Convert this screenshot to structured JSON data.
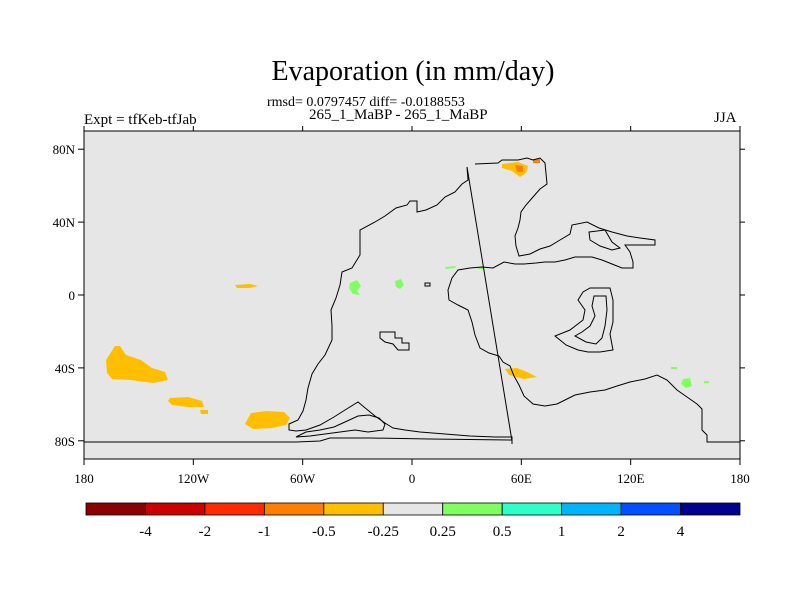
{
  "figure": {
    "title": "Evaporation (in mm/day)",
    "stats": "rmsd= 0.0797457 diff= -0.0188553",
    "subtitle": "265_1_MaBP - 265_1_MaBP",
    "left_label": "Expt = tfKeb-tfJab",
    "right_label": "JJA"
  },
  "map": {
    "lon_range": [
      -180,
      180
    ],
    "lat_range": [
      -90,
      90
    ],
    "background_color": "#e6e6e6",
    "coastline_color": "#000000",
    "lon_ticks": [
      {
        "value": -180,
        "label": "180"
      },
      {
        "value": -120,
        "label": "120W"
      },
      {
        "value": -60,
        "label": "60W"
      },
      {
        "value": 0,
        "label": "0"
      },
      {
        "value": 60,
        "label": "60E"
      },
      {
        "value": 120,
        "label": "120E"
      },
      {
        "value": 180,
        "label": "180"
      }
    ],
    "lat_ticks": [
      {
        "value": 80,
        "label": "80N"
      },
      {
        "value": 40,
        "label": "40N"
      },
      {
        "value": 0,
        "label": "0"
      },
      {
        "value": -40,
        "label": "40S"
      },
      {
        "value": -80,
        "label": "80S"
      }
    ]
  },
  "colorbar": {
    "colors": [
      "#8b0000",
      "#cc0000",
      "#ff2a00",
      "#ff7f00",
      "#ffbf00",
      "#e6e6e6",
      "#80ff60",
      "#2effc8",
      "#00b4ff",
      "#0050ff",
      "#000090"
    ],
    "labels": [
      "-4",
      "-2",
      "-1",
      "-0.5",
      "-0.25",
      "0.25",
      "0.5",
      "1",
      "2",
      "4"
    ]
  }
}
